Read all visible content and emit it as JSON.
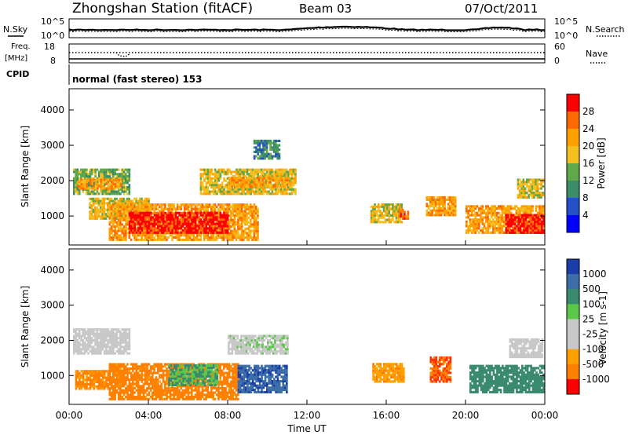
{
  "header": {
    "title": "Zhongshan Station (fitACF)",
    "beam": "Beam 03",
    "date": "07/Oct/2011"
  },
  "labels": {
    "n_sky": "N.Sky",
    "n_search": "N.Search",
    "freq_line1": "Freq.",
    "freq_line2": "[MHz]",
    "nave": "Nave",
    "cpid": "CPID",
    "mode": "normal (fast stereo) 153"
  },
  "noise_axis": {
    "left_top": "10^5",
    "left_bottom": "10^0",
    "right_top": "10^5",
    "right_bottom": "10^0"
  },
  "freq_axis": {
    "left_top": "18",
    "left_bottom": "8",
    "right_top": "60",
    "right_bottom": "0"
  },
  "power_colorbar": {
    "label": "Power [dB]",
    "ticks": [
      "28",
      "24",
      "20",
      "16",
      "12",
      "8",
      "4"
    ],
    "colors": [
      "#ff0000",
      "#ff6a00",
      "#ff9f00",
      "#f4c020",
      "#61a84a",
      "#3c8e6a",
      "#2450c8",
      "#0000ff"
    ]
  },
  "velocity_colorbar": {
    "label": "Velocity [m s-1]",
    "ticks": [
      "1000",
      "500",
      "100",
      "25",
      "-25",
      "-100",
      "-500",
      "-1000"
    ],
    "colors": [
      "#1c3ea8",
      "#3c6ea8",
      "#3a8a70",
      "#5cc84a",
      "#c8c8c8",
      "#c8c8c8",
      "#ffa000",
      "#ff8000",
      "#ff3000",
      "#ff0000"
    ]
  },
  "chart_data": [
    {
      "type": "heatmap",
      "title": "Power",
      "ylabel": "Slant Range [km]",
      "yticks": [
        "4000",
        "3000",
        "2000",
        "1000"
      ],
      "ylim": [
        180,
        4600
      ],
      "xlabel": "Time UT",
      "xticks": [
        "00:00",
        "04:00",
        "08:00",
        "12:00",
        "16:00",
        "20:00",
        "00:00"
      ],
      "xlim_hours": [
        0,
        24
      ],
      "bands": [
        {
          "t": [
            0.2,
            3.0
          ],
          "r": [
            1600,
            2300
          ],
          "level": 3
        },
        {
          "t": [
            0.4,
            2.6
          ],
          "r": [
            1750,
            2050
          ],
          "level": 5
        },
        {
          "t": [
            1.0,
            4.0
          ],
          "r": [
            900,
            1500
          ],
          "level": 4
        },
        {
          "t": [
            2.0,
            9.5
          ],
          "r": [
            300,
            1300
          ],
          "level": 5
        },
        {
          "t": [
            3.0,
            8.0
          ],
          "r": [
            500,
            1100
          ],
          "level": 7
        },
        {
          "t": [
            6.6,
            11.4
          ],
          "r": [
            1600,
            2300
          ],
          "level": 4
        },
        {
          "t": [
            8.0,
            11.0
          ],
          "r": [
            1800,
            2100
          ],
          "level": 5
        },
        {
          "t": [
            9.3,
            10.6
          ],
          "r": [
            2600,
            3100
          ],
          "level": 2
        },
        {
          "t": [
            15.2,
            16.8
          ],
          "r": [
            800,
            1300
          ],
          "level": 4
        },
        {
          "t": [
            16.6,
            17.1
          ],
          "r": [
            900,
            1200
          ],
          "level": 6
        },
        {
          "t": [
            18.0,
            19.5
          ],
          "r": [
            1000,
            1500
          ],
          "level": 5
        },
        {
          "t": [
            20.0,
            23.9
          ],
          "r": [
            500,
            1300
          ],
          "level": 5
        },
        {
          "t": [
            22.0,
            23.9
          ],
          "r": [
            500,
            1000
          ],
          "level": 7
        },
        {
          "t": [
            22.6,
            23.9
          ],
          "r": [
            1500,
            2000
          ],
          "level": 4
        }
      ]
    },
    {
      "type": "heatmap",
      "title": "Velocity",
      "ylabel": "Slant Range [km]",
      "yticks": [
        "4000",
        "3000",
        "2000",
        "1000"
      ],
      "ylim": [
        180,
        4600
      ],
      "xlabel": "Time UT",
      "xticks": [
        "00:00",
        "04:00",
        "08:00",
        "12:00",
        "16:00",
        "20:00",
        "00:00"
      ],
      "xlim_hours": [
        0,
        24
      ],
      "bands": [
        {
          "t": [
            0.2,
            3.0
          ],
          "r": [
            1600,
            2300
          ],
          "v": -10
        },
        {
          "t": [
            0.3,
            2.5
          ],
          "r": [
            600,
            1100
          ],
          "v": -300
        },
        {
          "t": [
            2.0,
            8.5
          ],
          "r": [
            300,
            1300
          ],
          "v": -400
        },
        {
          "t": [
            5.0,
            7.5
          ],
          "r": [
            700,
            1300
          ],
          "v": 60
        },
        {
          "t": [
            8.5,
            11.0
          ],
          "r": [
            500,
            1300
          ],
          "v": 700
        },
        {
          "t": [
            8.0,
            11.0
          ],
          "r": [
            1600,
            2100
          ],
          "v": 20
        },
        {
          "t": [
            15.3,
            16.9
          ],
          "r": [
            800,
            1300
          ],
          "v": -200
        },
        {
          "t": [
            18.2,
            19.2
          ],
          "r": [
            800,
            1500
          ],
          "v": -700
        },
        {
          "t": [
            20.2,
            23.9
          ],
          "r": [
            500,
            1300
          ],
          "v": 200
        },
        {
          "t": [
            22.2,
            23.9
          ],
          "r": [
            1500,
            2000
          ],
          "v": -5
        }
      ]
    }
  ]
}
